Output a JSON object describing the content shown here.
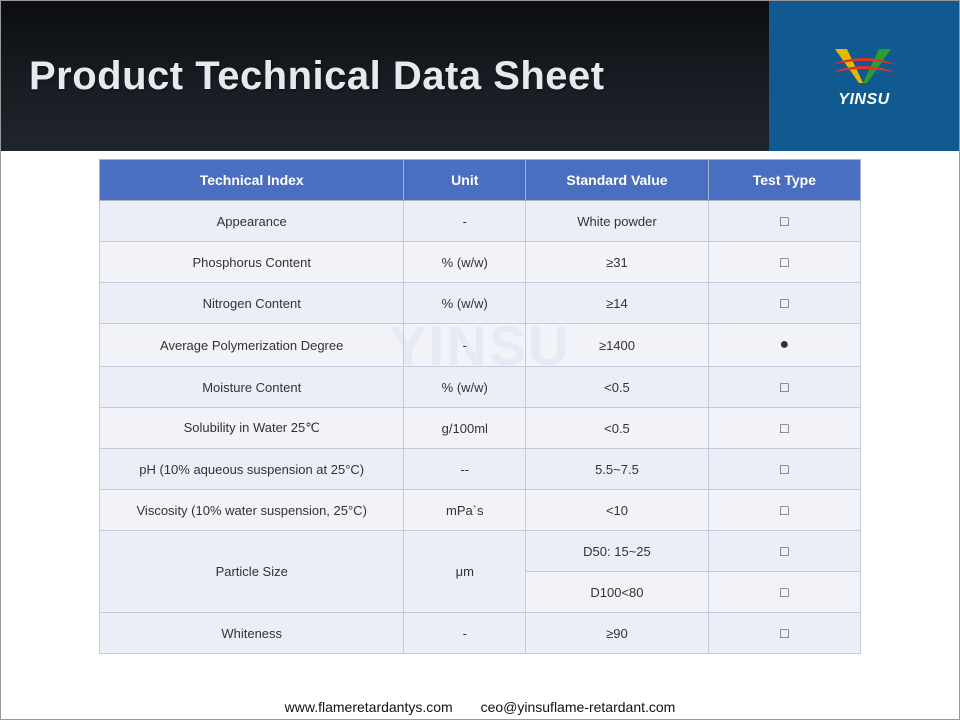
{
  "header": {
    "title": "Product Technical Data Sheet",
    "logo_text": "YINSU",
    "logo_colors": {
      "v_left": "#e6b800",
      "v_right": "#2aa02a",
      "swoosh": "#e63226"
    },
    "bg_gradient_top": "#0b0d10",
    "bg_gradient_bottom": "#1f252e",
    "logo_bg": "#105a91"
  },
  "watermark_text": "YINSU",
  "table": {
    "header_bg": "#4a6ec0",
    "header_fg": "#ffffff",
    "row_bg_odd": "#dae0ef",
    "row_bg_even": "#e5e9f4",
    "border_color": "#c3ccdf",
    "columns": [
      "Technical Index",
      "Unit",
      "Standard Value",
      "Test Type"
    ],
    "col_widths_pct": [
      40,
      16,
      24,
      20
    ],
    "symbols": {
      "box": "□",
      "dot": "●"
    },
    "rows": [
      {
        "index": "Appearance",
        "unit": "-",
        "std": "White powder",
        "test": "box"
      },
      {
        "index": "Phosphorus Content",
        "unit": "% (w/w)",
        "std": "≥31",
        "test": "box"
      },
      {
        "index": "Nitrogen Content",
        "unit": "% (w/w)",
        "std": "≥14",
        "test": "box"
      },
      {
        "index": "Average Polymerization Degree",
        "unit": "-",
        "std": "≥1400",
        "test": "dot"
      },
      {
        "index": "Moisture Content",
        "unit": "% (w/w)",
        "std": "<0.5",
        "test": "box"
      },
      {
        "index": "Solubility in Water 25℃",
        "unit": "g/100ml",
        "std": "<0.5",
        "test": "box"
      },
      {
        "index": "pH (10% aqueous suspension at 25°C)",
        "unit": "--",
        "std": "5.5~7.5",
        "test": "box"
      },
      {
        "index": "Viscosity (10% water suspension, 25°C)",
        "unit": "mPa`s",
        "std": "<10",
        "test": "box"
      },
      {
        "index": "Particle Size",
        "unit": "μm",
        "std_multi": [
          "D50: 15~25",
          "D100<80"
        ],
        "test_multi": [
          "box",
          "box"
        ]
      },
      {
        "index": "Whiteness",
        "unit": "-",
        "std": "≥90",
        "test": "box"
      }
    ]
  },
  "footer": {
    "website": "www.flameretardantys.com",
    "email": "ceo@yinsuflame-retardant.com"
  }
}
